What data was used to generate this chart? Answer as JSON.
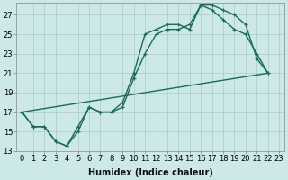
{
  "xlabel": "Humidex (Indice chaleur)",
  "bg_color": "#cce8e8",
  "grid_color": "#aacccc",
  "line_color": "#1a6b5a",
  "xlim": [
    -0.5,
    23.5
  ],
  "ylim": [
    13,
    28.2
  ],
  "yticks": [
    13,
    15,
    17,
    19,
    21,
    23,
    25,
    27
  ],
  "xticks": [
    0,
    1,
    2,
    3,
    4,
    5,
    6,
    7,
    8,
    9,
    10,
    11,
    12,
    13,
    14,
    15,
    16,
    17,
    18,
    19,
    20,
    21,
    22,
    23
  ],
  "line1_x": [
    0,
    1,
    2,
    3,
    4,
    5,
    6,
    7,
    8,
    9,
    10,
    11,
    12,
    13,
    14,
    15,
    16,
    17,
    18,
    19,
    20,
    21,
    22
  ],
  "line1_y": [
    17.0,
    15.5,
    15.5,
    14.0,
    13.5,
    15.5,
    17.5,
    17.0,
    17.0,
    17.5,
    20.5,
    23.0,
    25.0,
    25.5,
    25.5,
    26.0,
    28.0,
    28.0,
    27.5,
    27.0,
    26.0,
    22.5,
    21.0
  ],
  "line2_x": [
    0,
    1,
    2,
    3,
    4,
    5,
    6,
    7,
    8,
    9,
    10,
    11,
    12,
    13,
    14,
    15,
    16,
    17,
    18,
    19,
    20,
    21,
    22
  ],
  "line2_y": [
    17.0,
    15.5,
    15.5,
    14.0,
    13.5,
    15.0,
    17.5,
    17.0,
    17.0,
    18.0,
    21.0,
    25.0,
    25.5,
    26.0,
    26.0,
    25.5,
    28.0,
    27.5,
    26.5,
    25.5,
    25.0,
    23.0,
    21.0
  ],
  "line3_x": [
    0,
    22
  ],
  "line3_y": [
    17.0,
    21.0
  ],
  "marker_size": 2.5,
  "linewidth": 1.0,
  "tick_fontsize": 6,
  "xlabel_fontsize": 7
}
